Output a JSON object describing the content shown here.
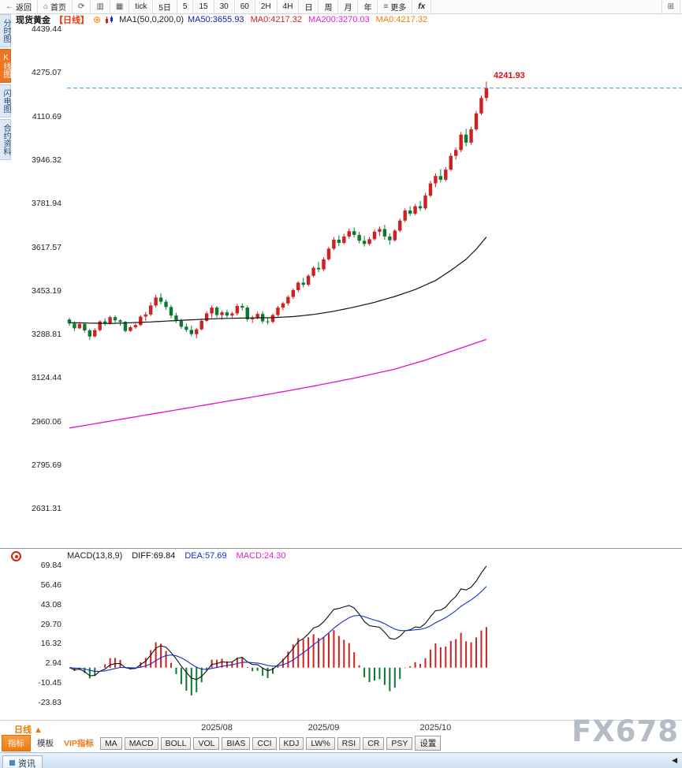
{
  "top_toolbar": {
    "items": [
      {
        "name": "back",
        "icon": "arrow-left",
        "label": "返回"
      },
      {
        "name": "home",
        "icon": "home",
        "label": "首页"
      },
      {
        "name": "refresh",
        "icon": "refresh",
        "label": ""
      },
      {
        "name": "chart-type-bar",
        "icon": "bar-chart",
        "label": ""
      },
      {
        "name": "chart-type-kline",
        "icon": "kline-chart",
        "label": ""
      },
      {
        "name": "period-tick",
        "label": "tick"
      },
      {
        "name": "period-5d",
        "label": "5日"
      },
      {
        "name": "period-5m",
        "label": "5"
      },
      {
        "name": "period-15m",
        "label": "15"
      },
      {
        "name": "period-30m",
        "label": "30"
      },
      {
        "name": "period-60m",
        "label": "60"
      },
      {
        "name": "period-2h",
        "label": "2H"
      },
      {
        "name": "period-4h",
        "label": "4H"
      },
      {
        "name": "period-day",
        "label": "日"
      },
      {
        "name": "period-week",
        "label": "周"
      },
      {
        "name": "period-month",
        "label": "月"
      },
      {
        "name": "period-year",
        "label": "年"
      },
      {
        "name": "more",
        "icon": "menu",
        "label": "更多"
      },
      {
        "name": "formula",
        "label": "fx"
      },
      {
        "name": "layout-grid",
        "icon": "grid",
        "label": ""
      }
    ],
    "icon_glyphs": {
      "arrow-left": "←",
      "home": "⌂",
      "refresh": "⟳",
      "bar-chart": "▥",
      "kline-chart": "▦",
      "menu": "≡",
      "grid": "⊞"
    }
  },
  "sidebar": {
    "tabs": [
      {
        "name": "time-chart",
        "label": "分时图",
        "active": false
      },
      {
        "name": "kline-chart",
        "label": "K线图",
        "active": true
      },
      {
        "name": "lightning-chart",
        "label": "闪电图",
        "active": false
      },
      {
        "name": "contract-info",
        "label": "合约资料",
        "active": false
      }
    ]
  },
  "chart_header": {
    "symbol": "现货黄金",
    "period": "【日线】",
    "ma_param_label": "MA1(50,0,200,0)",
    "ma_values": [
      {
        "text": "MA50:3655.93",
        "color": "#1414b4"
      },
      {
        "text": "MA0:4217.32",
        "color": "#d42020"
      },
      {
        "text": "MA200:3270.03",
        "color": "#e020d0"
      },
      {
        "text": "MA0:4217.32",
        "color": "#f08000"
      }
    ]
  },
  "chart_data": {
    "type": "candlestick",
    "title": "现货黄金 日线",
    "y_ticks": [
      4439.44,
      4275.07,
      4110.69,
      3946.32,
      3781.94,
      3617.57,
      3453.19,
      3288.81,
      3124.44,
      2960.06,
      2795.69,
      2631.31
    ],
    "current_price": 4217.32,
    "last_high_label": "4241.93",
    "up_color": "#d02020",
    "down_color": "#0a7a32",
    "ma50_color": "#101010",
    "ma200_color": "#e310c8",
    "current_price_line_color": "#2e9bd4",
    "candles": [
      [
        3345,
        3352,
        3321,
        3330
      ],
      [
        3330,
        3338,
        3302,
        3312
      ],
      [
        3312,
        3336,
        3308,
        3328
      ],
      [
        3328,
        3334,
        3296,
        3304
      ],
      [
        3304,
        3310,
        3268,
        3281
      ],
      [
        3281,
        3312,
        3278,
        3305
      ],
      [
        3305,
        3342,
        3300,
        3338
      ],
      [
        3338,
        3350,
        3322,
        3330
      ],
      [
        3330,
        3360,
        3326,
        3354
      ],
      [
        3354,
        3360,
        3334,
        3342
      ],
      [
        3342,
        3346,
        3322,
        3336
      ],
      [
        3336,
        3340,
        3296,
        3302
      ],
      [
        3302,
        3322,
        3298,
        3316
      ],
      [
        3316,
        3330,
        3310,
        3324
      ],
      [
        3324,
        3362,
        3320,
        3356
      ],
      [
        3356,
        3374,
        3340,
        3364
      ],
      [
        3364,
        3410,
        3358,
        3398
      ],
      [
        3398,
        3438,
        3390,
        3428
      ],
      [
        3428,
        3444,
        3402,
        3412
      ],
      [
        3412,
        3420,
        3382,
        3392
      ],
      [
        3392,
        3400,
        3350,
        3360
      ],
      [
        3360,
        3370,
        3332,
        3340
      ],
      [
        3340,
        3348,
        3310,
        3318
      ],
      [
        3318,
        3330,
        3298,
        3306
      ],
      [
        3306,
        3322,
        3282,
        3290
      ],
      [
        3290,
        3314,
        3274,
        3308
      ],
      [
        3308,
        3346,
        3304,
        3340
      ],
      [
        3340,
        3376,
        3336,
        3368
      ],
      [
        3368,
        3398,
        3352,
        3390
      ],
      [
        3390,
        3396,
        3352,
        3362
      ],
      [
        3362,
        3378,
        3344,
        3372
      ],
      [
        3372,
        3382,
        3352,
        3360
      ],
      [
        3360,
        3374,
        3348,
        3368
      ],
      [
        3368,
        3404,
        3360,
        3396
      ],
      [
        3396,
        3406,
        3380,
        3390
      ],
      [
        3390,
        3398,
        3338,
        3346
      ],
      [
        3346,
        3360,
        3332,
        3352
      ],
      [
        3352,
        3374,
        3346,
        3366
      ],
      [
        3366,
        3376,
        3330,
        3338
      ],
      [
        3338,
        3350,
        3326,
        3336
      ],
      [
        3336,
        3368,
        3330,
        3362
      ],
      [
        3362,
        3396,
        3356,
        3390
      ],
      [
        3390,
        3412,
        3380,
        3406
      ],
      [
        3406,
        3436,
        3398,
        3430
      ],
      [
        3430,
        3462,
        3422,
        3456
      ],
      [
        3456,
        3490,
        3448,
        3484
      ],
      [
        3484,
        3502,
        3466,
        3476
      ],
      [
        3476,
        3516,
        3470,
        3510
      ],
      [
        3510,
        3546,
        3504,
        3540
      ],
      [
        3540,
        3562,
        3524,
        3534
      ],
      [
        3534,
        3580,
        3528,
        3572
      ],
      [
        3572,
        3620,
        3566,
        3612
      ],
      [
        3612,
        3656,
        3606,
        3646
      ],
      [
        3646,
        3662,
        3622,
        3634
      ],
      [
        3634,
        3668,
        3628,
        3658
      ],
      [
        3658,
        3688,
        3650,
        3678
      ],
      [
        3678,
        3692,
        3654,
        3664
      ],
      [
        3664,
        3676,
        3632,
        3642
      ],
      [
        3642,
        3660,
        3620,
        3630
      ],
      [
        3630,
        3656,
        3624,
        3648
      ],
      [
        3648,
        3684,
        3642,
        3676
      ],
      [
        3676,
        3696,
        3660,
        3686
      ],
      [
        3686,
        3702,
        3646,
        3658
      ],
      [
        3658,
        3670,
        3628,
        3644
      ],
      [
        3644,
        3686,
        3638,
        3680
      ],
      [
        3680,
        3726,
        3674,
        3718
      ],
      [
        3718,
        3764,
        3712,
        3756
      ],
      [
        3756,
        3772,
        3736,
        3744
      ],
      [
        3744,
        3780,
        3738,
        3772
      ],
      [
        3772,
        3792,
        3754,
        3764
      ],
      [
        3764,
        3822,
        3758,
        3812
      ],
      [
        3812,
        3868,
        3806,
        3858
      ],
      [
        3858,
        3896,
        3844,
        3886
      ],
      [
        3886,
        3912,
        3862,
        3872
      ],
      [
        3872,
        3920,
        3866,
        3910
      ],
      [
        3910,
        3972,
        3904,
        3962
      ],
      [
        3962,
        3994,
        3948,
        3984
      ],
      [
        3984,
        4052,
        3976,
        4042
      ],
      [
        4042,
        4064,
        3998,
        4012
      ],
      [
        4012,
        4072,
        4004,
        4062
      ],
      [
        4062,
        4132,
        4056,
        4122
      ],
      [
        4122,
        4190,
        4116,
        4180
      ],
      [
        4180,
        4241.93,
        4168,
        4217.32
      ]
    ],
    "ma50_points": [
      [
        0,
        3333
      ],
      [
        8,
        3330
      ],
      [
        16,
        3336
      ],
      [
        24,
        3344
      ],
      [
        30,
        3349
      ],
      [
        36,
        3351
      ],
      [
        40,
        3352
      ],
      [
        44,
        3356
      ],
      [
        48,
        3364
      ],
      [
        52,
        3376
      ],
      [
        56,
        3392
      ],
      [
        60,
        3410
      ],
      [
        64,
        3432
      ],
      [
        68,
        3458
      ],
      [
        72,
        3492
      ],
      [
        75,
        3530
      ],
      [
        78,
        3572
      ],
      [
        80,
        3610
      ],
      [
        82,
        3655.93
      ]
    ],
    "ma200_points": [
      [
        0,
        2936
      ],
      [
        8,
        2962
      ],
      [
        16,
        2988
      ],
      [
        24,
        3014
      ],
      [
        32,
        3040
      ],
      [
        40,
        3066
      ],
      [
        48,
        3094
      ],
      [
        56,
        3124
      ],
      [
        64,
        3158
      ],
      [
        70,
        3192
      ],
      [
        74,
        3218
      ],
      [
        78,
        3244
      ],
      [
        82,
        3270.03
      ]
    ],
    "x_labels": [
      {
        "text": "2025/08",
        "index": 29
      },
      {
        "text": "2025/09",
        "index": 50
      },
      {
        "text": "2025/10",
        "index": 72
      }
    ],
    "macd": {
      "label": "MACD(13,8,9)",
      "params": [
        13,
        8,
        9
      ],
      "diff_label": "DIFF:69.84",
      "dea_label": "DEA:57.69",
      "macd_label": "MACD:24.30",
      "diff_color": "#101010",
      "dea_color": "#1430c8",
      "macd_color": "#e020d0",
      "y_ticks": [
        69.84,
        56.46,
        43.08,
        29.7,
        16.32,
        2.94,
        -10.45,
        -23.83
      ]
    }
  },
  "bottom_bar": {
    "period_label": "日线",
    "period_arrow": "▲",
    "indicators": [
      {
        "name": "indicator-menu",
        "label": "指标",
        "style": "primary"
      },
      {
        "name": "template",
        "label": "模板",
        "style": "plain"
      },
      {
        "name": "vip-indicator",
        "label": "VIP指标",
        "style": "vip"
      },
      {
        "name": "ma",
        "label": "MA",
        "style": "box"
      },
      {
        "name": "macd",
        "label": "MACD",
        "style": "box"
      },
      {
        "name": "boll",
        "label": "BOLL",
        "style": "box"
      },
      {
        "name": "vol",
        "label": "VOL",
        "style": "box"
      },
      {
        "name": "bias",
        "label": "BIAS",
        "style": "box"
      },
      {
        "name": "cci",
        "label": "CCI",
        "style": "box"
      },
      {
        "name": "kdj",
        "label": "KDJ",
        "style": "box"
      },
      {
        "name": "lw",
        "label": "LW%",
        "style": "box"
      },
      {
        "name": "rsi",
        "label": "RSI",
        "style": "box"
      },
      {
        "name": "cr",
        "label": "CR",
        "style": "box"
      },
      {
        "name": "psy",
        "label": "PSY",
        "style": "box"
      },
      {
        "name": "settings",
        "label": "设置",
        "style": "box"
      }
    ]
  },
  "watermark": "FX678",
  "status_bar": {
    "tab_label": "资讯"
  }
}
